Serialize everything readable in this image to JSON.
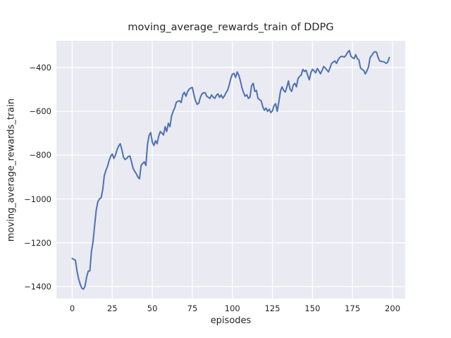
{
  "chart_data": {
    "type": "line",
    "title": "moving_average_rewards_train of DDPG",
    "xlabel": "episodes",
    "ylabel": "moving_average_rewards_train",
    "x_tick_values": [
      0,
      25,
      50,
      75,
      100,
      125,
      150,
      175,
      200
    ],
    "x_tick_labels": [
      "0",
      "25",
      "50",
      "75",
      "100",
      "125",
      "150",
      "175",
      "200"
    ],
    "y_tick_values": [
      -400,
      -600,
      -800,
      -1000,
      -1200,
      -1400
    ],
    "y_tick_labels": [
      "−400",
      "−600",
      "−800",
      "−1000",
      "−1200",
      "−1400"
    ],
    "xlim": [
      -9.9,
      207.9
    ],
    "ylim": [
      -1455,
      -278
    ],
    "grid": true,
    "legend": null,
    "line_color": "#4C72B0",
    "plot_bg_color": "#EAEAF2",
    "grid_color": "#FFFFFF",
    "text_color": "#262626",
    "x_start": 0,
    "x_interval": 1,
    "series": [
      {
        "name": "moving_average_rewards_train",
        "values": [
          -1272,
          -1276,
          -1280,
          -1330,
          -1365,
          -1390,
          -1408,
          -1412,
          -1398,
          -1356,
          -1330,
          -1328,
          -1240,
          -1195,
          -1120,
          -1050,
          -1013,
          -1000,
          -995,
          -960,
          -895,
          -870,
          -852,
          -825,
          -805,
          -795,
          -815,
          -800,
          -775,
          -758,
          -748,
          -775,
          -809,
          -820,
          -815,
          -806,
          -804,
          -830,
          -860,
          -874,
          -885,
          -900,
          -908,
          -847,
          -838,
          -831,
          -847,
          -750,
          -710,
          -697,
          -740,
          -756,
          -734,
          -748,
          -713,
          -692,
          -700,
          -708,
          -670,
          -692,
          -654,
          -670,
          -622,
          -600,
          -584,
          -558,
          -554,
          -552,
          -560,
          -525,
          -513,
          -531,
          -510,
          -499,
          -493,
          -491,
          -525,
          -552,
          -568,
          -563,
          -536,
          -520,
          -515,
          -515,
          -531,
          -536,
          -541,
          -525,
          -535,
          -541,
          -527,
          -520,
          -536,
          -525,
          -540,
          -530,
          -515,
          -504,
          -480,
          -450,
          -430,
          -427,
          -445,
          -420,
          -435,
          -461,
          -493,
          -515,
          -531,
          -524,
          -541,
          -535,
          -483,
          -472,
          -509,
          -504,
          -541,
          -547,
          -552,
          -579,
          -595,
          -585,
          -600,
          -590,
          -606,
          -598,
          -574,
          -565,
          -600,
          -557,
          -509,
          -488,
          -504,
          -512,
          -490,
          -461,
          -499,
          -509,
          -480,
          -472,
          -488,
          -450,
          -440,
          -434,
          -408,
          -418,
          -412,
          -435,
          -456,
          -424,
          -408,
          -415,
          -424,
          -404,
          -415,
          -429,
          -413,
          -395,
          -402,
          -411,
          -420,
          -400,
          -381,
          -375,
          -370,
          -381,
          -365,
          -354,
          -349,
          -350,
          -352,
          -343,
          -330,
          -322,
          -348,
          -355,
          -359,
          -341,
          -359,
          -365,
          -402,
          -408,
          -413,
          -429,
          -415,
          -397,
          -354,
          -345,
          -333,
          -327,
          -330,
          -354,
          -370,
          -372,
          -373,
          -375,
          -381,
          -375,
          -354
        ]
      }
    ]
  }
}
